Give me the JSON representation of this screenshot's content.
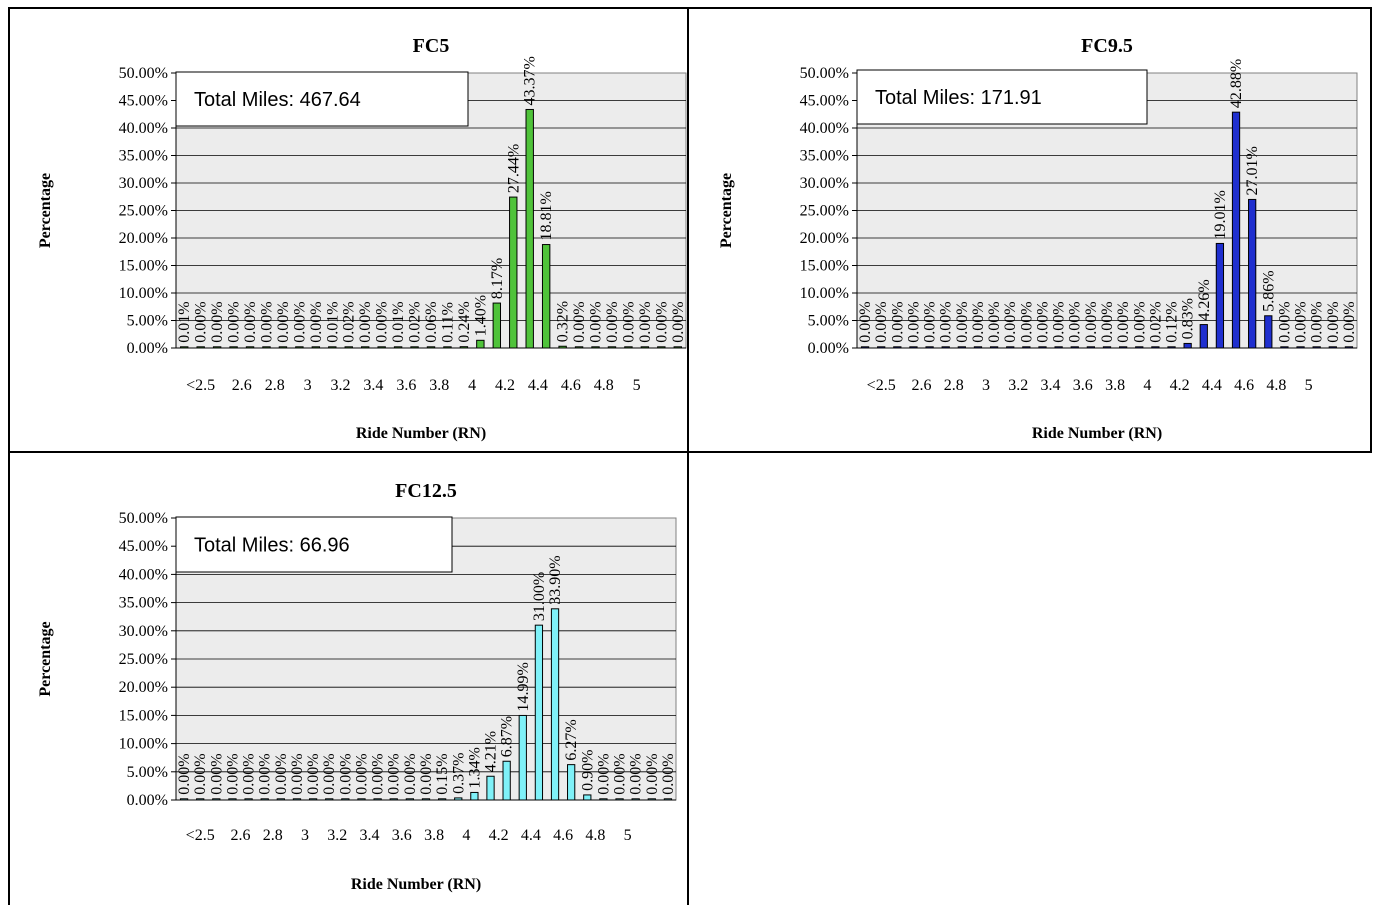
{
  "chart_data": [
    {
      "type": "bar",
      "title": "FC5",
      "xlabel": "Ride Number (RN)",
      "ylabel": "Percentage",
      "ylim": [
        0,
        50
      ],
      "yticks": [
        "0.00%",
        "5.00%",
        "10.00%",
        "15.00%",
        "20.00%",
        "25.00%",
        "30.00%",
        "35.00%",
        "40.00%",
        "45.00%",
        "50.00%"
      ],
      "xticks": [
        "<2.5",
        "2.6",
        "2.8",
        "3",
        "3.2",
        "3.4",
        "3.6",
        "3.8",
        "4",
        "4.2",
        "4.4",
        "4.6",
        "4.8",
        "5"
      ],
      "annotation": "Total Miles: 467.64",
      "bar_color": "#4fc33a",
      "grid": true,
      "values": [
        0.01,
        0.0,
        0.0,
        0.0,
        0.0,
        0.0,
        0.0,
        0.0,
        0.0,
        0.01,
        0.02,
        0.0,
        0.0,
        0.01,
        0.02,
        0.06,
        0.11,
        0.24,
        1.4,
        8.17,
        27.44,
        43.37,
        18.81,
        0.32,
        0.0,
        0.0,
        0.0,
        0.0,
        0.0,
        0.0,
        0.0
      ],
      "labels": [
        "0.01%",
        "0.00%",
        "0.00%",
        "0.00%",
        "0.00%",
        "0.00%",
        "0.00%",
        "0.00%",
        "0.00%",
        "0.01%",
        "0.02%",
        "0.00%",
        "0.00%",
        "0.01%",
        "0.02%",
        "0.06%",
        "0.11%",
        "0.24%",
        "1.40%",
        "8.17%",
        "27.44%",
        "43.37%",
        "18.81%",
        "0.32%",
        "0.00%",
        "0.00%",
        "0.00%",
        "0.00%",
        "0.00%",
        "0.00%",
        "0.00%"
      ]
    },
    {
      "type": "bar",
      "title": "FC9.5",
      "xlabel": "Ride Number (RN)",
      "ylabel": "Percentage",
      "ylim": [
        0,
        50
      ],
      "yticks": [
        "0.00%",
        "5.00%",
        "10.00%",
        "15.00%",
        "20.00%",
        "25.00%",
        "30.00%",
        "35.00%",
        "40.00%",
        "45.00%",
        "50.00%"
      ],
      "xticks": [
        "<2.5",
        "2.6",
        "2.8",
        "3",
        "3.2",
        "3.4",
        "3.6",
        "3.8",
        "4",
        "4.2",
        "4.4",
        "4.6",
        "4.8",
        "5"
      ],
      "annotation": "Total Miles: 171.91",
      "bar_color": "#1f2fcf",
      "grid": true,
      "values": [
        0.0,
        0.0,
        0.0,
        0.0,
        0.0,
        0.0,
        0.0,
        0.0,
        0.0,
        0.0,
        0.0,
        0.0,
        0.0,
        0.0,
        0.0,
        0.0,
        0.0,
        0.0,
        0.02,
        0.12,
        0.83,
        4.26,
        19.01,
        42.88,
        27.01,
        5.86,
        0.0,
        0.0,
        0.0,
        0.0,
        0.0
      ],
      "labels": [
        "0.00%",
        "0.00%",
        "0.00%",
        "0.00%",
        "0.00%",
        "0.00%",
        "0.00%",
        "0.00%",
        "0.00%",
        "0.00%",
        "0.00%",
        "0.00%",
        "0.00%",
        "0.00%",
        "0.00%",
        "0.00%",
        "0.00%",
        "0.00%",
        "0.02%",
        "0.12%",
        "0.83%",
        "4.26%",
        "19.01%",
        "42.88%",
        "27.01%",
        "5.86%",
        "0.00%",
        "0.00%",
        "0.00%",
        "0.00%",
        "0.00%"
      ]
    },
    {
      "type": "bar",
      "title": "FC12.5",
      "xlabel": "Ride Number (RN)",
      "ylabel": "Percentage",
      "ylim": [
        0,
        50
      ],
      "yticks": [
        "0.00%",
        "5.00%",
        "10.00%",
        "15.00%",
        "20.00%",
        "25.00%",
        "30.00%",
        "35.00%",
        "40.00%",
        "45.00%",
        "50.00%"
      ],
      "xticks": [
        "<2.5",
        "2.6",
        "2.8",
        "3",
        "3.2",
        "3.4",
        "3.6",
        "3.8",
        "4",
        "4.2",
        "4.4",
        "4.6",
        "4.8",
        "5"
      ],
      "annotation": "Total Miles: 66.96",
      "bar_color": "#7ff1f8",
      "grid": true,
      "values": [
        0.0,
        0.0,
        0.0,
        0.0,
        0.0,
        0.0,
        0.0,
        0.0,
        0.0,
        0.0,
        0.0,
        0.0,
        0.0,
        0.0,
        0.0,
        0.0,
        0.15,
        0.37,
        1.34,
        4.21,
        6.87,
        14.99,
        31.0,
        33.9,
        6.27,
        0.9,
        0.0,
        0.0,
        0.0,
        0.0,
        0.0
      ],
      "labels": [
        "0.00%",
        "0.00%",
        "0.00%",
        "0.00%",
        "0.00%",
        "0.00%",
        "0.00%",
        "0.00%",
        "0.00%",
        "0.00%",
        "0.00%",
        "0.00%",
        "0.00%",
        "0.00%",
        "0.00%",
        "0.00%",
        "0.15%",
        "0.37%",
        "1.34%",
        "4.21%",
        "6.87%",
        "14.99%",
        "31.00%",
        "33.90%",
        "6.27%",
        "0.90%",
        "0.00%",
        "0.00%",
        "0.00%",
        "0.00%",
        "0.00%"
      ]
    }
  ]
}
